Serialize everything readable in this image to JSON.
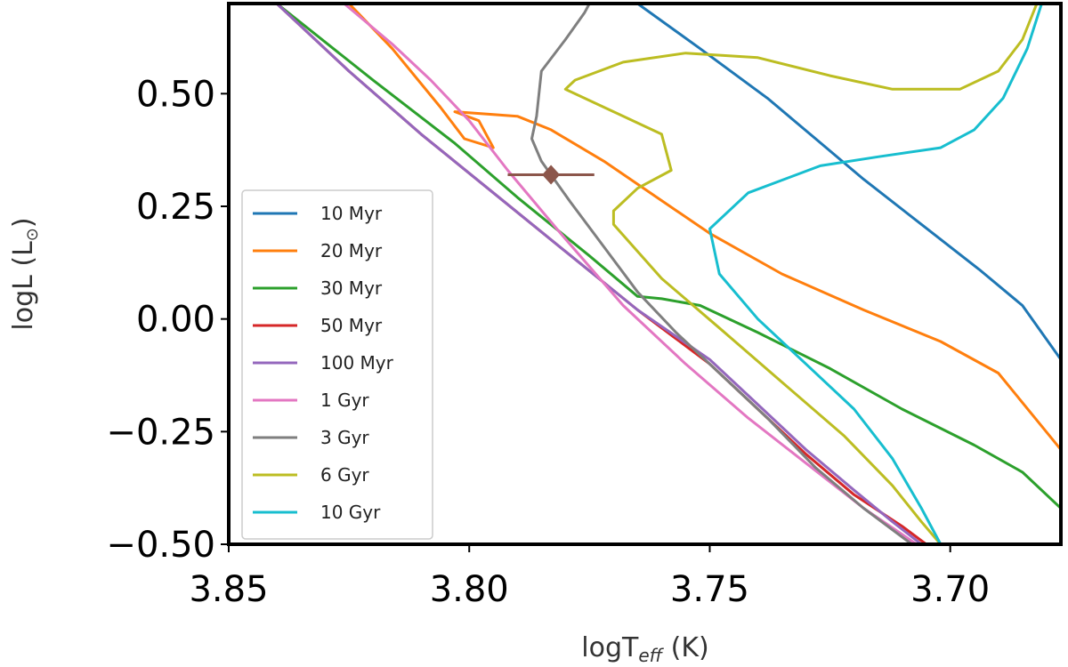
{
  "chart_data": {
    "type": "line",
    "title": "",
    "xlabel": "logT",
    "xlabel_sub": "eff",
    "xlabel_unit": " (K)",
    "ylabel": "logL (L",
    "ylabel_sub": "⊙",
    "ylabel_end": ")",
    "xlim": [
      3.85,
      3.677
    ],
    "ylim": [
      -0.5,
      0.7
    ],
    "xticks": [
      3.85,
      3.8,
      3.75,
      3.7
    ],
    "xtick_labels": [
      "3.85",
      "3.80",
      "3.75",
      "3.70"
    ],
    "yticks": [
      0.5,
      0.25,
      0.0,
      -0.25,
      -0.5
    ],
    "ytick_labels": [
      "0.50",
      "0.25",
      "0.00",
      "−0.25",
      "−0.50"
    ],
    "grid": false,
    "legend_position": "lower-left",
    "series": [
      {
        "name": "10 Myr",
        "color": "#1f77b4",
        "points": [
          [
            3.765,
            0.7
          ],
          [
            3.752,
            0.6
          ],
          [
            3.738,
            0.49
          ],
          [
            3.728,
            0.4
          ],
          [
            3.718,
            0.31
          ],
          [
            3.706,
            0.21
          ],
          [
            3.694,
            0.11
          ],
          [
            3.685,
            0.03
          ],
          [
            3.677,
            -0.09
          ]
        ]
      },
      {
        "name": "20 Myr",
        "color": "#ff7f0e",
        "points": [
          [
            3.825,
            0.7
          ],
          [
            3.816,
            0.6
          ],
          [
            3.806,
            0.47
          ],
          [
            3.801,
            0.4
          ],
          [
            3.795,
            0.38
          ],
          [
            3.798,
            0.44
          ],
          [
            3.803,
            0.46
          ],
          [
            3.79,
            0.45
          ],
          [
            3.783,
            0.42
          ],
          [
            3.772,
            0.35
          ],
          [
            3.761,
            0.27
          ],
          [
            3.75,
            0.19
          ],
          [
            3.735,
            0.1
          ],
          [
            3.718,
            0.02
          ],
          [
            3.702,
            -0.05
          ],
          [
            3.69,
            -0.12
          ],
          [
            3.677,
            -0.29
          ]
        ]
      },
      {
        "name": "30 Myr",
        "color": "#2ca02c",
        "points": [
          [
            3.84,
            0.7
          ],
          [
            3.82,
            0.53
          ],
          [
            3.803,
            0.39
          ],
          [
            3.79,
            0.27
          ],
          [
            3.775,
            0.14
          ],
          [
            3.765,
            0.05
          ],
          [
            3.76,
            0.045
          ],
          [
            3.752,
            0.03
          ],
          [
            3.74,
            -0.03
          ],
          [
            3.725,
            -0.11
          ],
          [
            3.71,
            -0.2
          ],
          [
            3.695,
            -0.28
          ],
          [
            3.685,
            -0.34
          ],
          [
            3.677,
            -0.42
          ]
        ]
      },
      {
        "name": "50 Myr",
        "color": "#d62728",
        "points": [
          [
            3.84,
            0.7
          ],
          [
            3.825,
            0.55
          ],
          [
            3.81,
            0.41
          ],
          [
            3.795,
            0.28
          ],
          [
            3.78,
            0.15
          ],
          [
            3.765,
            0.02
          ],
          [
            3.75,
            -0.1
          ],
          [
            3.74,
            -0.2
          ],
          [
            3.73,
            -0.3
          ],
          [
            3.72,
            -0.39
          ],
          [
            3.71,
            -0.46
          ],
          [
            3.705,
            -0.5
          ]
        ]
      },
      {
        "name": "100 Myr",
        "color": "#9467bd",
        "points": [
          [
            3.84,
            0.7
          ],
          [
            3.825,
            0.55
          ],
          [
            3.81,
            0.41
          ],
          [
            3.795,
            0.28
          ],
          [
            3.78,
            0.15
          ],
          [
            3.765,
            0.02
          ],
          [
            3.75,
            -0.09
          ],
          [
            3.74,
            -0.19
          ],
          [
            3.73,
            -0.29
          ],
          [
            3.72,
            -0.38
          ],
          [
            3.712,
            -0.45
          ],
          [
            3.706,
            -0.5
          ]
        ]
      },
      {
        "name": "1 Gyr",
        "color": "#e377c2",
        "points": [
          [
            3.826,
            0.7
          ],
          [
            3.816,
            0.61
          ],
          [
            3.808,
            0.53
          ],
          [
            3.8,
            0.44
          ],
          [
            3.792,
            0.33
          ],
          [
            3.781,
            0.19
          ],
          [
            3.768,
            0.03
          ],
          [
            3.755,
            -0.1
          ],
          [
            3.742,
            -0.22
          ],
          [
            3.73,
            -0.32
          ],
          [
            3.718,
            -0.42
          ],
          [
            3.707,
            -0.5
          ]
        ]
      },
      {
        "name": "3 Gyr",
        "color": "#7f7f7f",
        "points": [
          [
            3.775,
            0.7
          ],
          [
            3.776,
            0.68
          ],
          [
            3.78,
            0.62
          ],
          [
            3.785,
            0.55
          ],
          [
            3.786,
            0.45
          ],
          [
            3.787,
            0.4
          ],
          [
            3.785,
            0.35
          ],
          [
            3.779,
            0.26
          ],
          [
            3.772,
            0.16
          ],
          [
            3.765,
            0.06
          ],
          [
            3.757,
            -0.03
          ],
          [
            3.748,
            -0.12
          ],
          [
            3.738,
            -0.22
          ],
          [
            3.728,
            -0.33
          ],
          [
            3.718,
            -0.42
          ],
          [
            3.708,
            -0.5
          ]
        ]
      },
      {
        "name": "6 Gyr",
        "color": "#bcbd22",
        "points": [
          [
            3.682,
            0.7
          ],
          [
            3.685,
            0.62
          ],
          [
            3.69,
            0.55
          ],
          [
            3.698,
            0.51
          ],
          [
            3.712,
            0.51
          ],
          [
            3.725,
            0.54
          ],
          [
            3.74,
            0.58
          ],
          [
            3.755,
            0.59
          ],
          [
            3.768,
            0.57
          ],
          [
            3.778,
            0.53
          ],
          [
            3.78,
            0.51
          ],
          [
            3.77,
            0.46
          ],
          [
            3.76,
            0.41
          ],
          [
            3.758,
            0.33
          ],
          [
            3.765,
            0.29
          ],
          [
            3.77,
            0.24
          ],
          [
            3.77,
            0.21
          ],
          [
            3.76,
            0.09
          ],
          [
            3.748,
            -0.02
          ],
          [
            3.735,
            -0.14
          ],
          [
            3.722,
            -0.26
          ],
          [
            3.712,
            -0.37
          ],
          [
            3.706,
            -0.45
          ],
          [
            3.702,
            -0.5
          ]
        ]
      },
      {
        "name": "10 Gyr",
        "color": "#17becf",
        "points": [
          [
            3.681,
            0.7
          ],
          [
            3.684,
            0.6
          ],
          [
            3.689,
            0.49
          ],
          [
            3.695,
            0.42
          ],
          [
            3.702,
            0.38
          ],
          [
            3.715,
            0.36
          ],
          [
            3.727,
            0.34
          ],
          [
            3.742,
            0.28
          ],
          [
            3.75,
            0.2
          ],
          [
            3.748,
            0.1
          ],
          [
            3.74,
            0.0
          ],
          [
            3.73,
            -0.1
          ],
          [
            3.72,
            -0.2
          ],
          [
            3.712,
            -0.31
          ],
          [
            3.706,
            -0.42
          ],
          [
            3.702,
            -0.5
          ]
        ]
      }
    ],
    "data_point": {
      "x": 3.783,
      "y": 0.32,
      "xerr": 0.009,
      "color": "#8c564b"
    }
  }
}
